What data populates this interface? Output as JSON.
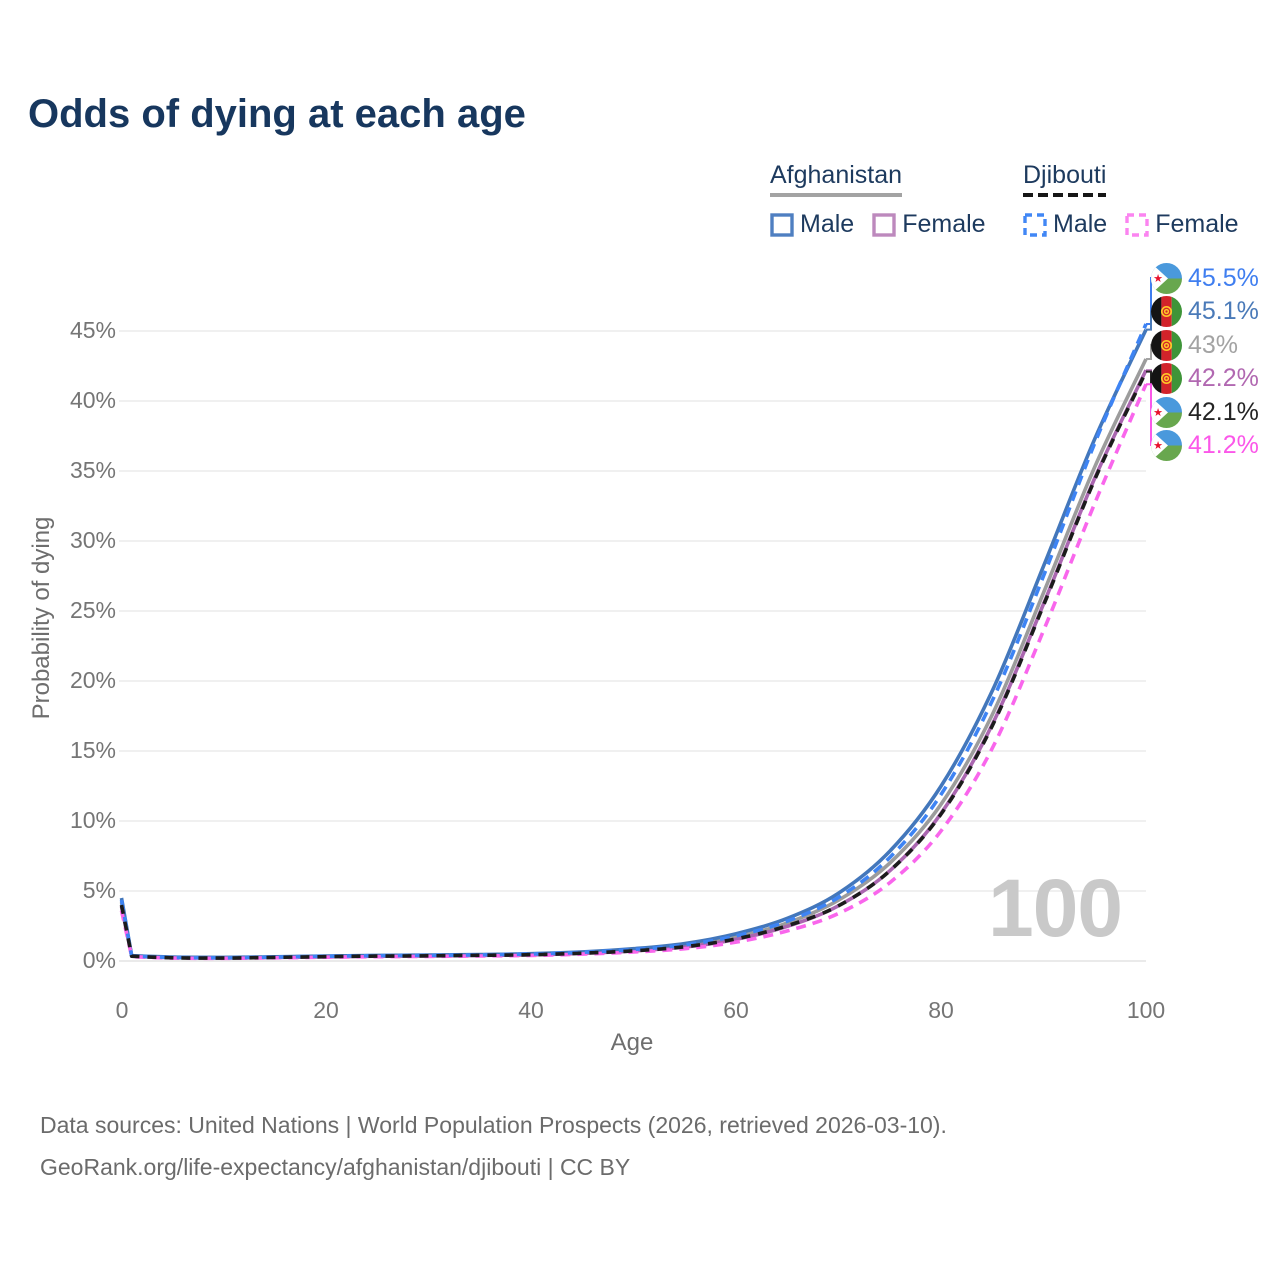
{
  "title": "Odds of dying at each age",
  "watermark": "100",
  "legend": {
    "groups": [
      {
        "label": "Afghanistan",
        "line_style": "solid",
        "underline_color": "#a3a3a3",
        "items": [
          {
            "label": "Male",
            "color": "#4f7fc1",
            "dashed": false
          },
          {
            "label": "Female",
            "color": "#bd89bd",
            "dashed": false
          }
        ]
      },
      {
        "label": "Djibouti",
        "line_style": "dashed",
        "underline_color": "#161616",
        "items": [
          {
            "label": "Male",
            "color": "#4187f5",
            "dashed": true
          },
          {
            "label": "Female",
            "color": "#fb84f0",
            "dashed": true
          }
        ]
      }
    ]
  },
  "chart_data": {
    "type": "line",
    "title": "Odds of dying at each age",
    "xlabel": "Age",
    "ylabel": "Probability of dying",
    "xlim": [
      0,
      100
    ],
    "ylim": [
      0,
      47.5
    ],
    "grid": "horizontal",
    "x_ticks": [
      0,
      20,
      40,
      60,
      80,
      100
    ],
    "x_tick_labels": [
      "0",
      "20",
      "40",
      "60",
      "80",
      "100"
    ],
    "y_ticks": [
      0,
      5,
      10,
      15,
      20,
      25,
      30,
      35,
      40,
      45
    ],
    "y_tick_labels": [
      "0%",
      "5%",
      "10%",
      "15%",
      "20%",
      "25%",
      "30%",
      "35%",
      "40%",
      "45%"
    ],
    "ages": [
      0,
      1,
      5,
      10,
      15,
      20,
      25,
      30,
      35,
      40,
      45,
      50,
      55,
      60,
      65,
      70,
      75,
      80,
      85,
      90,
      95,
      100
    ],
    "series": [
      {
        "id": "afghanistan-both",
        "country": "Afghanistan",
        "sex": "Both",
        "style": "solid",
        "color": "#9c9c9c",
        "end_value": 43.0,
        "values": [
          4.2,
          0.36,
          0.26,
          0.24,
          0.28,
          0.33,
          0.37,
          0.39,
          0.43,
          0.48,
          0.6,
          0.8,
          1.12,
          1.72,
          2.72,
          4.35,
          7.0,
          11.2,
          17.6,
          26.3,
          35.3,
          43.0
        ]
      },
      {
        "id": "afghanistan-female",
        "country": "Afghanistan",
        "sex": "Female",
        "style": "solid",
        "color": "#aa66b0",
        "end_value": 42.2,
        "values": [
          3.9,
          0.34,
          0.24,
          0.22,
          0.26,
          0.3,
          0.34,
          0.36,
          0.4,
          0.44,
          0.55,
          0.72,
          1.0,
          1.55,
          2.48,
          3.95,
          6.45,
          10.55,
          16.9,
          25.5,
          34.5,
          42.2
        ]
      },
      {
        "id": "afghanistan-male",
        "country": "Afghanistan",
        "sex": "Male",
        "style": "solid",
        "color": "#4377bb",
        "end_value": 45.1,
        "values": [
          4.5,
          0.38,
          0.28,
          0.26,
          0.3,
          0.36,
          0.4,
          0.42,
          0.46,
          0.52,
          0.65,
          0.88,
          1.25,
          1.95,
          3.05,
          4.85,
          7.85,
          12.5,
          19.3,
          28.2,
          37.3,
          45.1
        ]
      },
      {
        "id": "djibouti-female",
        "country": "Djibouti",
        "sex": "Female",
        "style": "dashed",
        "color": "#f966ec",
        "end_value": 41.2,
        "values": [
          3.6,
          0.31,
          0.21,
          0.19,
          0.23,
          0.27,
          0.31,
          0.33,
          0.36,
          0.4,
          0.49,
          0.64,
          0.88,
          1.35,
          2.15,
          3.4,
          5.6,
          9.3,
          15.2,
          23.6,
          32.7,
          41.2
        ]
      },
      {
        "id": "djibouti-male",
        "country": "Djibouti",
        "sex": "Male",
        "style": "dashed",
        "color": "#3e84f4",
        "end_value": 45.5,
        "values": [
          4.35,
          0.36,
          0.25,
          0.23,
          0.28,
          0.34,
          0.38,
          0.4,
          0.44,
          0.5,
          0.62,
          0.82,
          1.15,
          1.8,
          2.85,
          4.55,
          7.4,
          11.9,
          18.6,
          27.5,
          37.0,
          45.5
        ]
      },
      {
        "id": "djibouti-both",
        "country": "Djibouti",
        "sex": "Both",
        "style": "dashed",
        "color": "#1c1c1c",
        "end_value": 42.1,
        "values": [
          4.0,
          0.34,
          0.23,
          0.21,
          0.26,
          0.31,
          0.35,
          0.37,
          0.41,
          0.45,
          0.56,
          0.73,
          1.02,
          1.58,
          2.52,
          3.95,
          6.45,
          10.5,
          16.8,
          25.4,
          34.4,
          42.1
        ]
      }
    ]
  },
  "end_labels": [
    {
      "text": "45.5%",
      "color": "#3f7ef0",
      "flag": "djibouti",
      "series": "djibouti-male",
      "value": 45.5
    },
    {
      "text": "45.1%",
      "color": "#4a7ab8",
      "flag": "afghanistan",
      "series": "afghanistan-male",
      "value": 45.1
    },
    {
      "text": "43%",
      "color": "#a3a3a3",
      "flag": "afghanistan",
      "series": "afghanistan-both",
      "value": 43.0
    },
    {
      "text": "42.2%",
      "color": "#b168b1",
      "flag": "afghanistan",
      "series": "afghanistan-female",
      "value": 42.2
    },
    {
      "text": "42.1%",
      "color": "#242424",
      "flag": "djibouti",
      "series": "djibouti-both",
      "value": 42.1
    },
    {
      "text": "41.2%",
      "color": "#fb57e9",
      "flag": "djibouti",
      "series": "djibouti-female",
      "value": 41.2
    }
  ],
  "footer": {
    "line1": "Data sources: United Nations | World Population Prospects (2026, retrieved 2026-03-10).",
    "line2": "GeoRank.org/life-expectancy/afghanistan/djibouti | CC BY"
  }
}
